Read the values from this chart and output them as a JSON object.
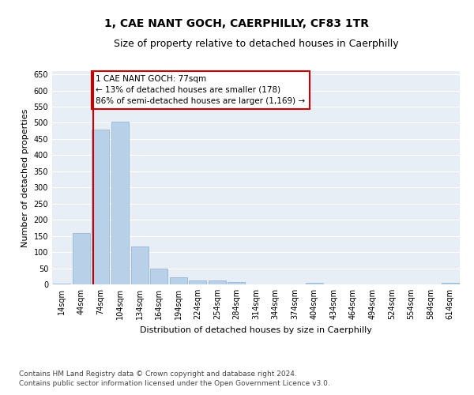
{
  "title": "1, CAE NANT GOCH, CAERPHILLY, CF83 1TR",
  "subtitle": "Size of property relative to detached houses in Caerphilly",
  "xlabel": "Distribution of detached houses by size in Caerphilly",
  "ylabel": "Number of detached properties",
  "categories": [
    "14sqm",
    "44sqm",
    "74sqm",
    "104sqm",
    "134sqm",
    "164sqm",
    "194sqm",
    "224sqm",
    "254sqm",
    "284sqm",
    "314sqm",
    "344sqm",
    "374sqm",
    "404sqm",
    "434sqm",
    "464sqm",
    "494sqm",
    "524sqm",
    "554sqm",
    "584sqm",
    "614sqm"
  ],
  "values": [
    3,
    160,
    478,
    503,
    118,
    49,
    22,
    13,
    12,
    8,
    0,
    0,
    0,
    5,
    0,
    0,
    0,
    0,
    0,
    0,
    4
  ],
  "bar_color": "#b8d0e8",
  "bar_edge_color": "#8ab0d0",
  "vline_color": "#cc0000",
  "annotation_text": "1 CAE NANT GOCH: 77sqm\n← 13% of detached houses are smaller (178)\n86% of semi-detached houses are larger (1,169) →",
  "annotation_box_color": "white",
  "annotation_box_edge": "#cc0000",
  "ylim": [
    0,
    660
  ],
  "yticks": [
    0,
    50,
    100,
    150,
    200,
    250,
    300,
    350,
    400,
    450,
    500,
    550,
    600,
    650
  ],
  "background_color": "#e8eef5",
  "grid_color": "white",
  "footer_line1": "Contains HM Land Registry data © Crown copyright and database right 2024.",
  "footer_line2": "Contains public sector information licensed under the Open Government Licence v3.0.",
  "title_fontsize": 10,
  "subtitle_fontsize": 9,
  "axis_label_fontsize": 8,
  "tick_fontsize": 7,
  "annotation_fontsize": 7.5,
  "footer_fontsize": 6.5
}
